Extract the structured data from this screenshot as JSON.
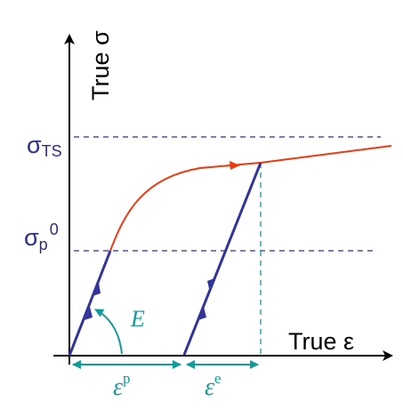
{
  "axes": {
    "y_title": "True σ",
    "x_title": "True ε"
  },
  "levels": {
    "sigma_ts": {
      "symbol": "σ",
      "subscript": "TS"
    },
    "sigma_p0": {
      "symbol": "σ",
      "subscript": "p",
      "superscript": "0"
    }
  },
  "annotations": {
    "modulus": "E",
    "plastic_strain": {
      "symbol": "ε",
      "superscript": "p"
    },
    "elastic_strain": {
      "symbol": "ε",
      "superscript": "e"
    }
  },
  "colors": {
    "axis": "#000000",
    "level_lines": "#2e2e8a",
    "stress_curve": "#ee3a10",
    "unload_lines": "#33349a",
    "strain_markers": "#139a9a"
  }
}
